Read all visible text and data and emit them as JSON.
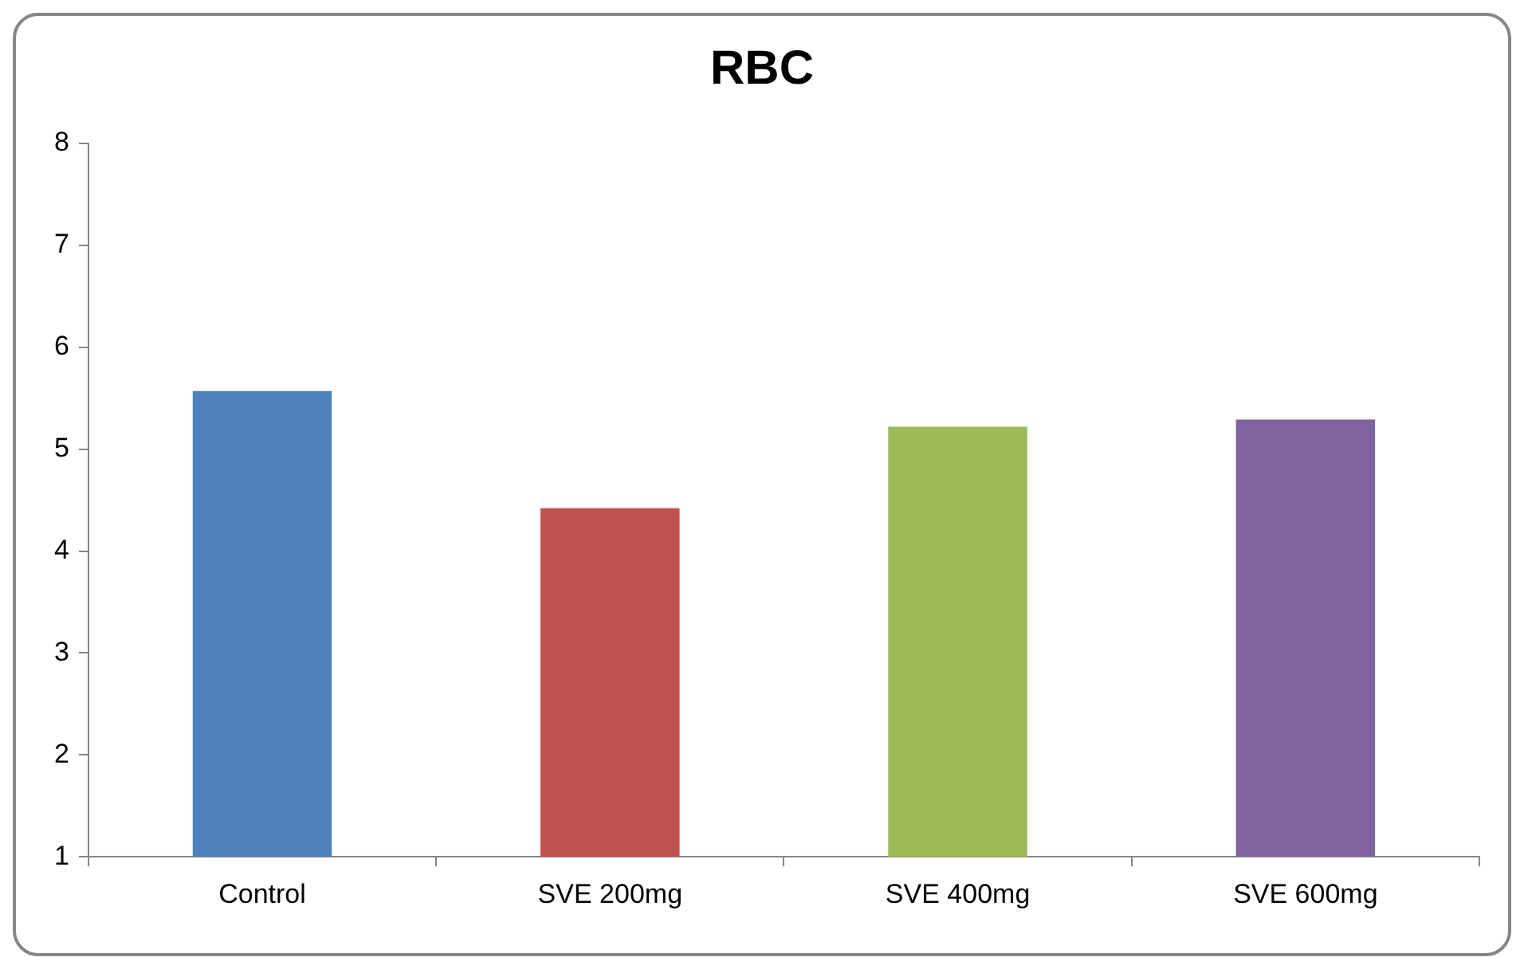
{
  "chart_data": {
    "type": "bar",
    "title": "RBC",
    "categories": [
      "Control",
      "SVE 200mg",
      "SVE 400mg",
      "SVE 600mg"
    ],
    "values": [
      5.57,
      4.42,
      5.22,
      5.29
    ],
    "colors": [
      "#4f81bd",
      "#c0504d",
      "#9bbb59",
      "#8064a2"
    ],
    "ylim": [
      1,
      8
    ],
    "yticks": [
      1,
      2,
      3,
      4,
      5,
      6,
      7,
      8
    ],
    "grid": false,
    "legend": false
  }
}
